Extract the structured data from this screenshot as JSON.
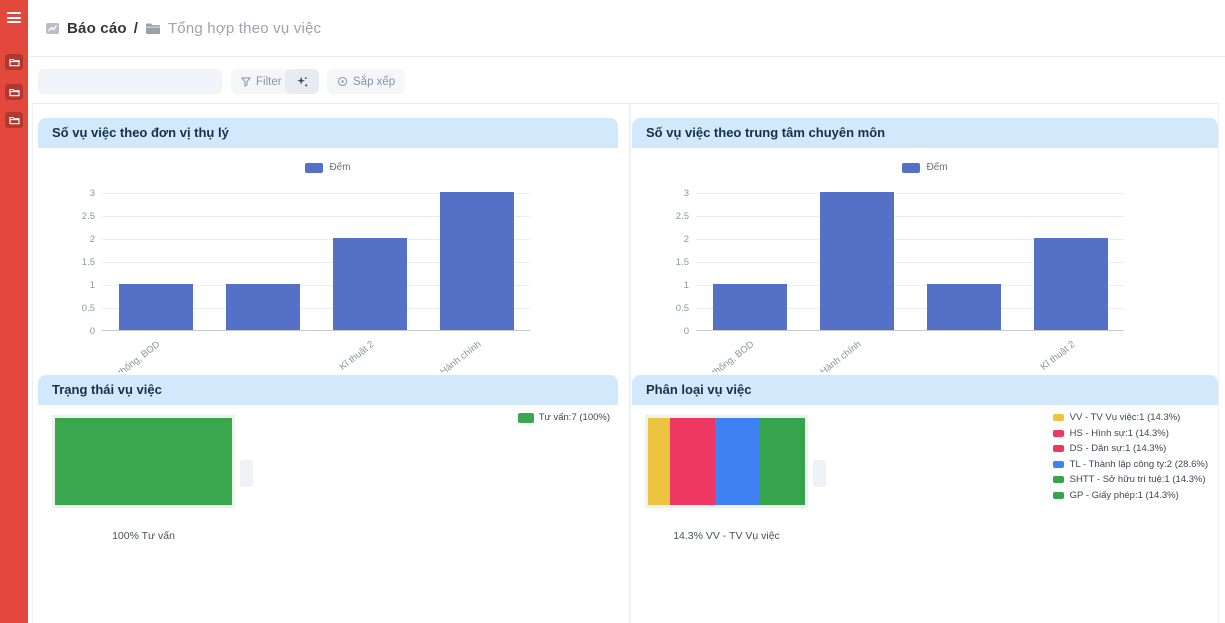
{
  "breadcrumb": {
    "section": "Báo cáo",
    "separator": "/",
    "page": "Tổng hợp theo vụ việc"
  },
  "toolbar": {
    "search_value": "",
    "filter_label": "Filter",
    "sort_label": "Sắp xếp"
  },
  "sidebar": {
    "color": "#e3483d",
    "shortcuts": [
      "folder",
      "folder",
      "folder"
    ]
  },
  "colors": {
    "panel_header_bg": "#d2e8fb",
    "bar_blue": "#5571c7",
    "status_green": "#38a74e"
  },
  "chart_data": [
    {
      "type": "bar",
      "title": "Số vụ việc theo đơn vị thụ lý",
      "legend": [
        "Đếm"
      ],
      "categories": [
        "Hệ thống, BOD",
        "",
        "Kĩ thuật 2",
        "Hành chính"
      ],
      "values": [
        1,
        1,
        2,
        3
      ],
      "xlabel": "",
      "ylabel": "",
      "ylim": [
        0,
        3
      ],
      "yticks": [
        0,
        0.5,
        1,
        1.5,
        2,
        2.5,
        3
      ],
      "bar_color": "#5571c7",
      "grid": true,
      "legend_position": "top"
    },
    {
      "type": "bar",
      "title": "Số vụ việc theo trung tâm chuyên môn",
      "legend": [
        "Đếm"
      ],
      "categories": [
        "Hệ thống, BOD",
        "Hành chính",
        "",
        "Kĩ thuật 2"
      ],
      "values": [
        1,
        3,
        1,
        2
      ],
      "xlabel": "",
      "ylabel": "",
      "ylim": [
        0,
        3
      ],
      "yticks": [
        0,
        0.5,
        1,
        1.5,
        2,
        2.5,
        3
      ],
      "bar_color": "#5571c7",
      "grid": true,
      "legend_position": "top"
    },
    {
      "type": "block",
      "title": "Trạng thái vụ việc",
      "segments": [
        {
          "label": "Tư vấn",
          "value": 7,
          "percent": 100,
          "color": "#38a74e",
          "legend": "Tư vấn:7 (100%)"
        }
      ],
      "caption": "100% Tư vấn",
      "legend_position": "top-right"
    },
    {
      "type": "block",
      "title": "Phân loại vụ việc",
      "segments": [
        {
          "label": "VV - TV Vụ việc",
          "value": 1,
          "percent": 14.3,
          "color": "#ecc440",
          "legend": "VV - TV Vụ việc:1 (14.3%)"
        },
        {
          "label": "HS - Hình sự",
          "value": 1,
          "percent": 14.3,
          "color": "#ee3761",
          "legend": "HS - Hình sự:1 (14.3%)"
        },
        {
          "label": "DS - Dân sự",
          "value": 1,
          "percent": 14.3,
          "color": "#ee3761",
          "legend": "DS - Dân sự:1 (14.3%)"
        },
        {
          "label": "TL - Thành lập công ty",
          "value": 2,
          "percent": 28.6,
          "color": "#3f80f2",
          "legend": "TL - Thành lập công ty:2 (28.6%)"
        },
        {
          "label": "SHTT - Sở hữu trí tuệ",
          "value": 1,
          "percent": 14.3,
          "color": "#35a44c",
          "legend": "SHTT - Sở hữu trí tuệ:1 (14.3%)"
        },
        {
          "label": "GP - Giấy phép",
          "value": 1,
          "percent": 14.3,
          "color": "#35a44c",
          "legend": "GP - Giấy phép:1 (14.3%)"
        }
      ],
      "caption": "14.3% VV - TV Vụ việc",
      "legend_position": "top-right"
    }
  ]
}
